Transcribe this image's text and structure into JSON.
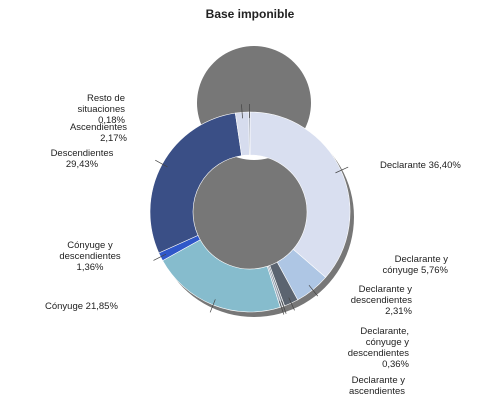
{
  "chart_data": {
    "type": "pie",
    "title": "Base imponible",
    "slices": [
      {
        "name": "Declarante",
        "value": 36.4,
        "label": "Declarante 36,40%",
        "color": "#d9dff0"
      },
      {
        "name": "Declarante y cónyuge",
        "value": 5.76,
        "label": "Declarante y cónyuge 5,76%",
        "color": "#aec6e4"
      },
      {
        "name": "Declarante y descendientes",
        "value": 2.31,
        "label": "Declarante y descendientes 2,31%",
        "color": "#5b6470"
      },
      {
        "name": "Declarante, cónyuge y descendientes",
        "value": 0.36,
        "label": "Declarante, cónyuge y descendientes 0,36%",
        "color": "#7f8a96"
      },
      {
        "name": "Declarante y ascendientes",
        "value": 0.36,
        "label": "Declarante y ascendientes",
        "color": "#9aa7b8"
      },
      {
        "name": "Cónyuge",
        "value": 21.85,
        "label": "Cónyuge 21,85%",
        "color": "#86bccd"
      },
      {
        "name": "Cónyuge y descendientes",
        "value": 1.36,
        "label": "Cónyuge y descendientes 1,36%",
        "color": "#2f57c9"
      },
      {
        "name": "Descendientes",
        "value": 29.43,
        "label": "Descendientes 29,43%",
        "color": "#3a4f86"
      },
      {
        "name": "Ascendientes",
        "value": 2.17,
        "label": "Ascendientes 2,17%",
        "color": "#d6dcee"
      },
      {
        "name": "Resto de situaciones",
        "value": 0.18,
        "label": "Resto de situaciones 0,18%",
        "color": "#4a5870"
      }
    ]
  }
}
